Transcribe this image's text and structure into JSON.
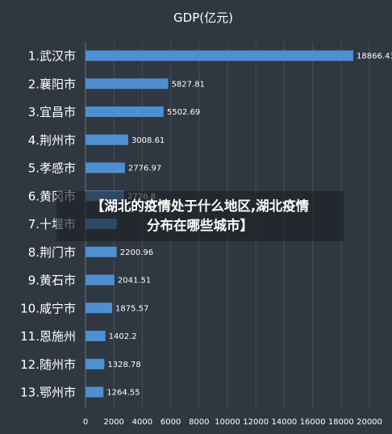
{
  "overlay": {
    "line1": "【湖北的疫情处于什么地区,湖北疫情",
    "line2": "分布在哪些城市】"
  },
  "chart_data": {
    "type": "bar",
    "orientation": "horizontal",
    "title": "GDP(亿元)",
    "categories": [
      "1.武汉市",
      "2.襄阳市",
      "3.宜昌市",
      "4.荆州市",
      "5.孝感市",
      "6.黄冈市",
      "7.十堰市",
      "8.荆门市",
      "9.黄石市",
      "10.咸宁市",
      "11.恩施州",
      "12.随州市",
      "13.鄂州市"
    ],
    "values": [
      18866.43,
      5827.81,
      5502.69,
      3008.61,
      2776.97,
      2726.8,
      2200,
      2200.96,
      2041.51,
      1875.57,
      1402.2,
      1328.78,
      1264.55
    ],
    "value_labels": [
      "18866.43",
      "5827.81",
      "5502.69",
      "3008.61",
      "2776.97",
      "2726.8",
      "",
      "2200.96",
      "2041.51",
      "1875.57",
      "1402.2",
      "1328.78",
      "1264.55"
    ],
    "xlim": [
      0,
      20000
    ],
    "xticks": [
      "0",
      "2000",
      "4000",
      "6000",
      "8000",
      "10000",
      "12000",
      "14000",
      "16000",
      "18000",
      "20000"
    ],
    "grid": true,
    "colors": {
      "bar": "#4d8fd1",
      "background": "#2f3741",
      "grid": "#454f5a",
      "text": "#ffffff"
    }
  }
}
